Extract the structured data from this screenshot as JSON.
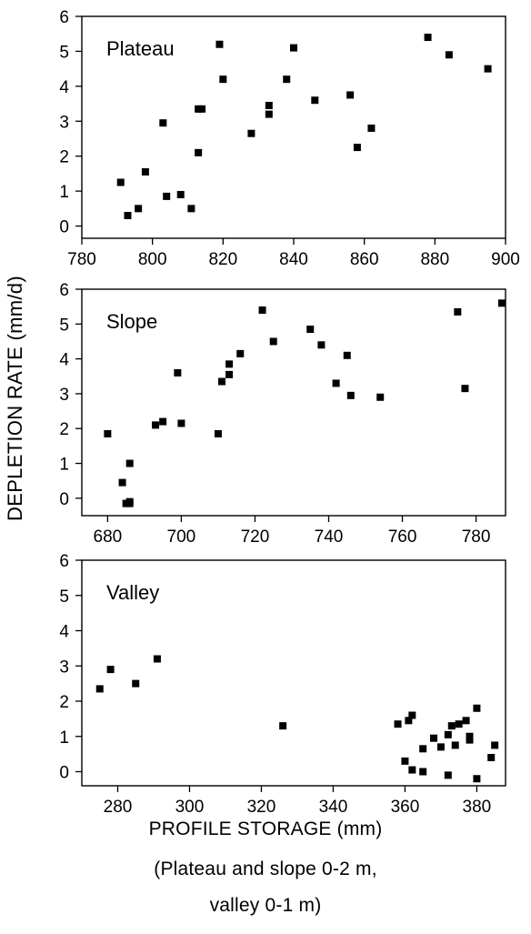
{
  "chart_data": {
    "type": "scatter",
    "shared_ylabel": "DEPLETION RATE (mm/d)",
    "xlabel_lines": [
      "PROFILE STORAGE (mm)",
      "(Plateau and slope 0-2 m,",
      "valley 0-1 m)"
    ],
    "marker_color": "#000000",
    "panels": [
      {
        "name": "Plateau",
        "xlim": [
          780,
          900
        ],
        "ylim": [
          -0.35,
          6
        ],
        "xticks": [
          780,
          800,
          820,
          840,
          860,
          880,
          900
        ],
        "yticks": [
          0,
          1,
          2,
          3,
          4,
          5,
          6
        ],
        "x": [
          791,
          793,
          796,
          798,
          803,
          804,
          808,
          811,
          813,
          813,
          814,
          819,
          820,
          828,
          833,
          833,
          838,
          840,
          846,
          856,
          858,
          862,
          878,
          884,
          895
        ],
        "y": [
          1.25,
          0.3,
          0.5,
          1.55,
          2.95,
          0.85,
          0.9,
          0.5,
          2.1,
          3.35,
          3.35,
          5.2,
          4.2,
          2.65,
          3.45,
          3.2,
          4.2,
          5.1,
          3.6,
          3.75,
          2.25,
          2.8,
          5.4,
          4.9,
          4.5
        ]
      },
      {
        "name": "Slope",
        "xlim": [
          673,
          788
        ],
        "ylim": [
          -0.5,
          6
        ],
        "xticks": [
          680,
          700,
          720,
          740,
          760,
          780
        ],
        "yticks": [
          0,
          1,
          2,
          3,
          4,
          5,
          6
        ],
        "x": [
          680,
          684,
          685,
          686,
          686,
          686,
          693,
          695,
          699,
          700,
          710,
          711,
          713,
          713,
          716,
          722,
          725,
          735,
          738,
          742,
          745,
          746,
          754,
          775,
          777,
          787
        ],
        "y": [
          1.85,
          0.45,
          -0.15,
          -0.15,
          1.0,
          -0.1,
          2.1,
          2.2,
          3.6,
          2.15,
          1.85,
          3.35,
          3.55,
          3.85,
          4.15,
          5.4,
          4.5,
          4.85,
          4.4,
          3.3,
          4.1,
          2.95,
          2.9,
          5.35,
          3.15,
          5.6
        ]
      },
      {
        "name": "Valley",
        "xlim": [
          270,
          388
        ],
        "ylim": [
          -0.4,
          6
        ],
        "xticks": [
          280,
          300,
          320,
          340,
          360,
          380
        ],
        "yticks": [
          0,
          1,
          2,
          3,
          4,
          5,
          6
        ],
        "x": [
          275,
          278,
          285,
          291,
          326,
          358,
          360,
          361,
          362,
          362,
          365,
          365,
          368,
          370,
          372,
          372,
          373,
          374,
          375,
          377,
          378,
          378,
          380,
          380,
          384,
          385
        ],
        "y": [
          2.35,
          2.9,
          2.5,
          3.2,
          1.3,
          1.35,
          0.3,
          1.45,
          0.05,
          1.6,
          0.65,
          0.0,
          0.95,
          0.7,
          1.05,
          -0.1,
          1.3,
          0.75,
          1.35,
          1.45,
          0.9,
          1.0,
          1.8,
          -0.2,
          0.4,
          0.75
        ]
      }
    ]
  }
}
